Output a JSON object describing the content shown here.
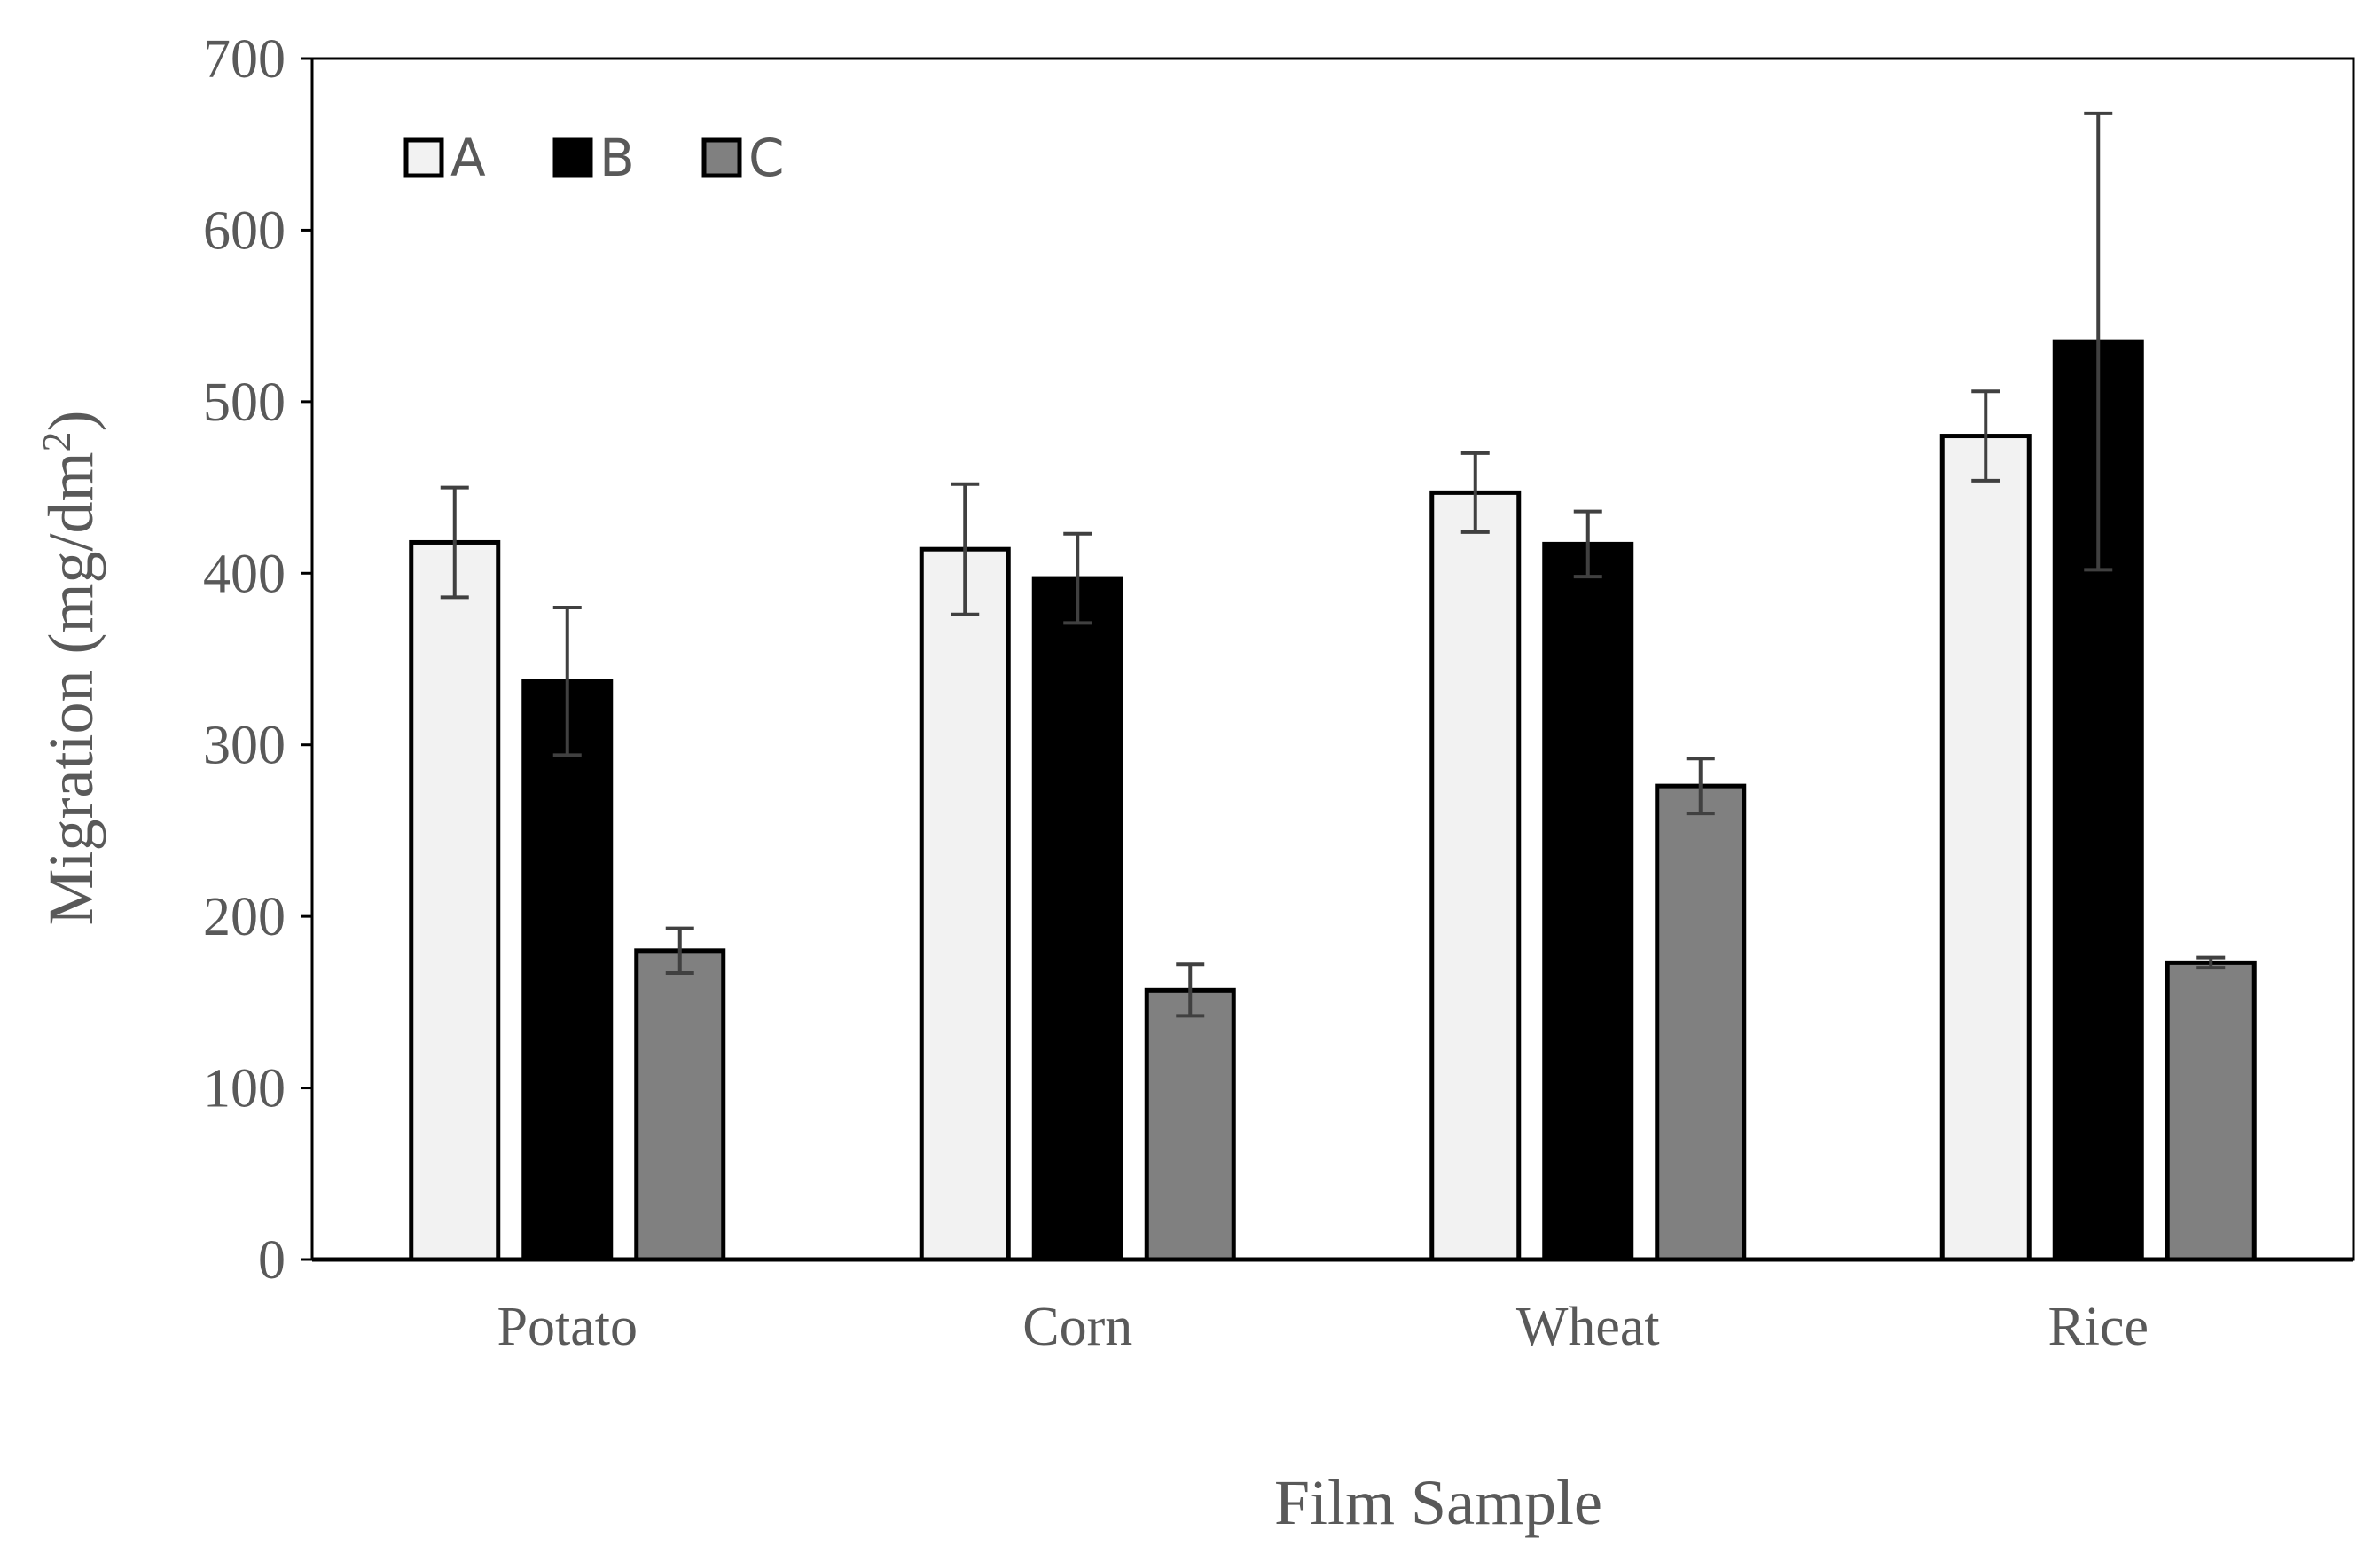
{
  "chart_data": {
    "type": "bar",
    "categories": [
      "Potato",
      "Corn",
      "Wheat",
      "Rice"
    ],
    "series": [
      {
        "name": "A",
        "values": [
          418,
          414,
          447,
          480
        ],
        "errors": [
          32,
          38,
          23,
          26
        ],
        "color": "#f2f2f2"
      },
      {
        "name": "B",
        "values": [
          337,
          397,
          417,
          535
        ],
        "errors": [
          43,
          26,
          19,
          133
        ],
        "color": "#000000"
      },
      {
        "name": "C",
        "values": [
          180,
          157,
          276,
          173
        ],
        "errors": [
          13,
          15,
          16,
          3
        ],
        "color": "#808080"
      }
    ],
    "xlabel": "Film Sample",
    "ylabel": "Migration (mg/dm",
    "ylabel_superscript": "2",
    "ylabel_close": ")",
    "ylim": [
      0,
      700
    ],
    "yticks": [
      "0",
      "100",
      "200",
      "300",
      "400",
      "500",
      "600",
      "700"
    ],
    "grid": false,
    "legend_position": "top-left",
    "axis_color": "#000000",
    "errorbar_color": "#404040"
  }
}
